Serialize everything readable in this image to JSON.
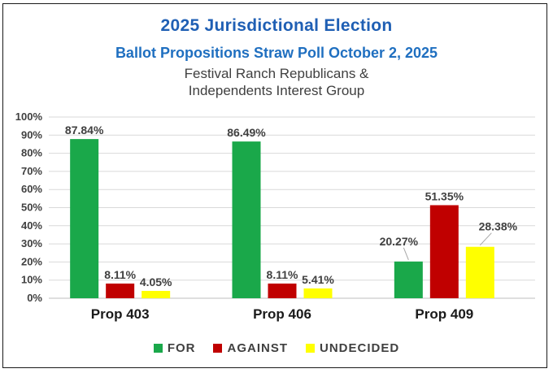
{
  "chart_data": {
    "type": "bar",
    "title": "2025 Jurisdictional Election",
    "subtitle": "Ballot Propositions Straw Poll October 2, 2025",
    "group_line1": "Festival Ranch Republicans &",
    "group_line2": "Independents Interest Group",
    "categories": [
      "Prop 403",
      "Prop 406",
      "Prop 409"
    ],
    "series": [
      {
        "name": "FOR",
        "color": "#1aa84a",
        "values": [
          87.84,
          86.49,
          20.27
        ],
        "labels": [
          "87.84%",
          "86.49%",
          "20.27%"
        ]
      },
      {
        "name": "AGAINST",
        "color": "#c00000",
        "values": [
          8.11,
          8.11,
          51.35
        ],
        "labels": [
          "8.11%",
          "8.11%",
          "51.35%"
        ]
      },
      {
        "name": "UNDECIDED",
        "color": "#ffff00",
        "values": [
          4.05,
          5.41,
          28.38
        ],
        "labels": [
          "4.05%",
          "5.41%",
          "28.38%"
        ]
      }
    ],
    "ylim": [
      0,
      100
    ],
    "yticks": [
      "0%",
      "10%",
      "20%",
      "30%",
      "40%",
      "50%",
      "60%",
      "70%",
      "80%",
      "90%",
      "100%"
    ],
    "grid": true,
    "legend_position": "bottom"
  }
}
